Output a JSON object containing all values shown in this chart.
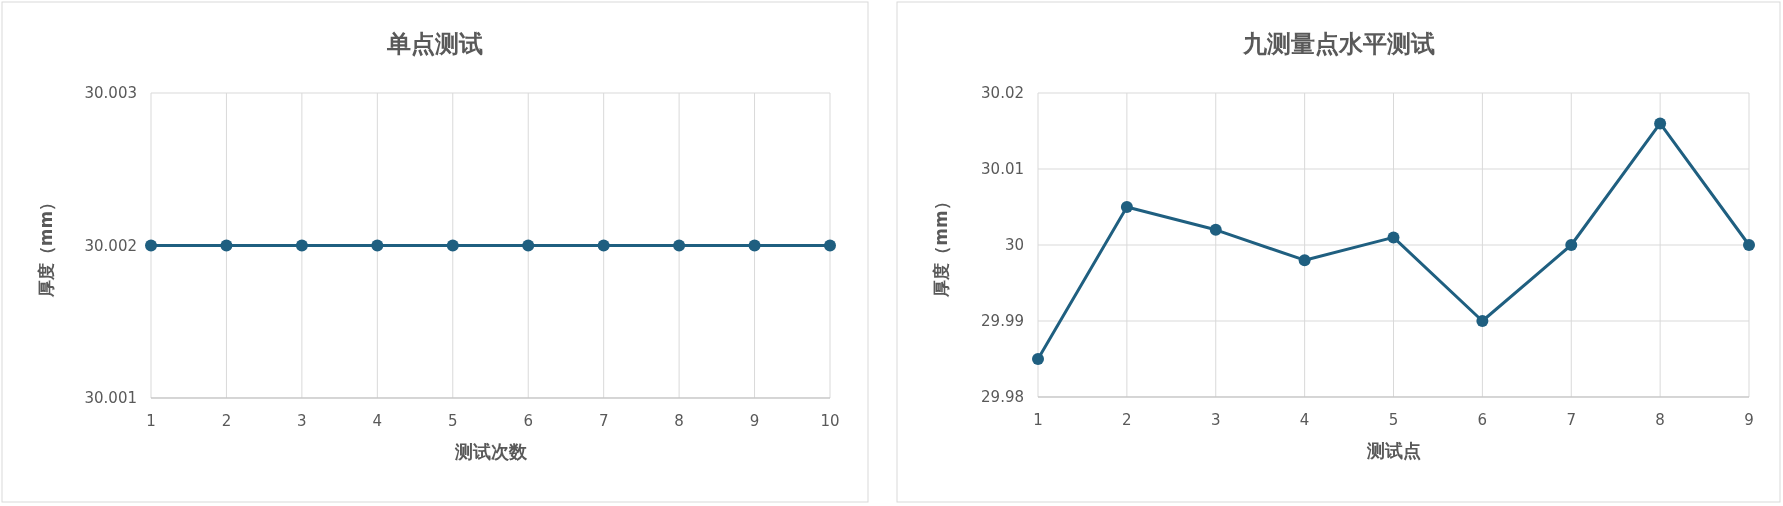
{
  "chart_data": [
    {
      "type": "line",
      "title": "单点测试",
      "xlabel": "测试次数",
      "ylabel": "厚度（mm）",
      "x": [
        1,
        2,
        3,
        4,
        5,
        6,
        7,
        8,
        9,
        10
      ],
      "series": [
        {
          "color": "#1f5f80",
          "values": [
            30.002,
            30.002,
            30.002,
            30.002,
            30.002,
            30.002,
            30.002,
            30.002,
            30.002,
            30.002
          ]
        }
      ],
      "xlim": [
        1,
        10
      ],
      "xticks": [
        1,
        2,
        3,
        4,
        5,
        6,
        7,
        8,
        9,
        10
      ],
      "ylim": [
        30.001,
        30.003
      ],
      "yticks": [
        30.001,
        30.002,
        30.003
      ],
      "grid": true,
      "marker": "circle",
      "line_style": "solid"
    },
    {
      "type": "line",
      "title": "九测量点水平测试",
      "xlabel": "测试点",
      "ylabel": "厚度（mm）",
      "x": [
        1,
        2,
        3,
        4,
        5,
        6,
        7,
        8,
        9
      ],
      "series": [
        {
          "color": "#1f5f80",
          "values": [
            29.985,
            30.005,
            30.002,
            29.998,
            30.001,
            29.99,
            30,
            30.016,
            30
          ]
        }
      ],
      "xlim": [
        1,
        9
      ],
      "xticks": [
        1,
        2,
        3,
        4,
        5,
        6,
        7,
        8,
        9
      ],
      "ylim": [
        29.98,
        30.02
      ],
      "yticks": [
        29.98,
        29.99,
        30,
        30.01,
        30.02
      ],
      "grid": true,
      "marker": "circle",
      "line_style": "solid"
    }
  ]
}
